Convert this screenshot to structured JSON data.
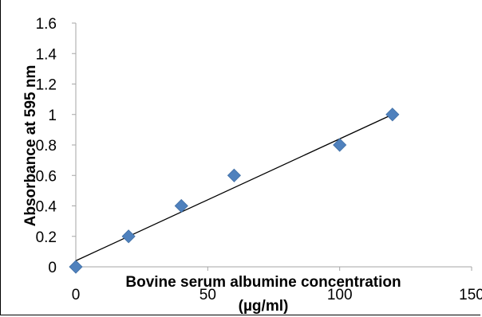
{
  "chart_data": {
    "type": "scatter",
    "title": "",
    "xlabel": [
      "Bovine serum albumine concentration",
      "(µg/ml)"
    ],
    "ylabel": "Absorbance at 595 nm",
    "xlim": [
      0,
      150
    ],
    "ylim": [
      0,
      1.6
    ],
    "xticks": [
      0,
      50,
      100,
      150
    ],
    "yticks": [
      0,
      0.2,
      0.4,
      0.6,
      0.8,
      1,
      1.2,
      1.4,
      1.6
    ],
    "xtick_labels": [
      "0",
      "50",
      "100",
      "150"
    ],
    "ytick_labels": [
      "0",
      "0.2",
      "0.4",
      "0.6",
      "0.8",
      "1",
      "1.2",
      "1.4",
      "1.6"
    ],
    "grid": false,
    "legend": "none",
    "series": [
      {
        "marker": "diamond",
        "color": "#4F81BD",
        "x": [
          0,
          20,
          40,
          60,
          100,
          120
        ],
        "y": [
          0,
          0.2,
          0.4,
          0.6,
          0.8,
          1.0
        ]
      }
    ],
    "trendline": {
      "type": "linear",
      "color": "#000000",
      "x": [
        0,
        120
      ],
      "y": [
        0.04,
        1.0
      ]
    }
  }
}
